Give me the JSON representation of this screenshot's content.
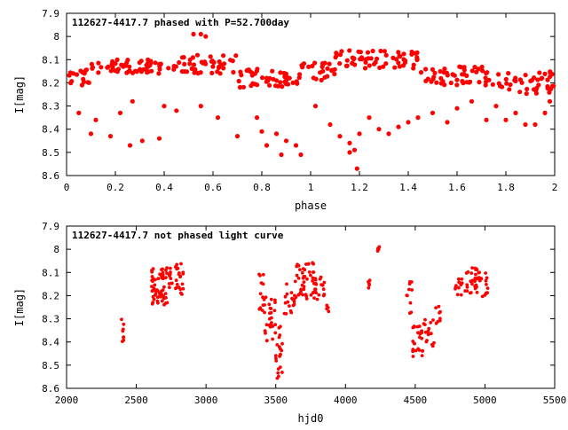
{
  "chart_data": [
    {
      "type": "scatter",
      "title": "112627-4417.7 phased with P=52.700day",
      "xlabel": "phase",
      "ylabel": "I[mag]",
      "xlim": [
        0,
        2
      ],
      "ylim": [
        8.6,
        7.9
      ],
      "y_inverted": true,
      "grid": false,
      "marker_color": "#ff0000",
      "x_ticks": [
        "0",
        "0.2",
        "0.4",
        "0.6",
        "0.8",
        "1",
        "1.2",
        "1.4",
        "1.6",
        "1.8",
        "2"
      ],
      "y_ticks": [
        "7.9",
        "8",
        "8.1",
        "8.2",
        "8.3",
        "8.4",
        "8.5",
        "8.6"
      ],
      "segments": [
        {
          "x0": 0.0,
          "x1": 0.1,
          "y": 8.17,
          "spread": 0.04
        },
        {
          "x0": 0.1,
          "x1": 0.45,
          "y": 8.13,
          "spread": 0.03
        },
        {
          "x0": 0.45,
          "x1": 0.7,
          "y": 8.12,
          "spread": 0.04
        },
        {
          "x0": 0.7,
          "x1": 0.95,
          "y": 8.18,
          "spread": 0.04
        },
        {
          "x0": 0.95,
          "x1": 1.1,
          "y": 8.15,
          "spread": 0.04
        },
        {
          "x0": 1.1,
          "x1": 1.45,
          "y": 8.1,
          "spread": 0.04
        },
        {
          "x0": 1.45,
          "x1": 1.75,
          "y": 8.17,
          "spread": 0.04
        },
        {
          "x0": 1.75,
          "x1": 2.0,
          "y": 8.2,
          "spread": 0.05
        }
      ],
      "faint_branch": [
        {
          "x": 0.05,
          "y": 8.33
        },
        {
          "x": 0.1,
          "y": 8.42
        },
        {
          "x": 0.18,
          "y": 8.43
        },
        {
          "x": 0.26,
          "y": 8.47
        },
        {
          "x": 0.31,
          "y": 8.45
        },
        {
          "x": 0.38,
          "y": 8.44
        },
        {
          "x": 0.12,
          "y": 8.36
        },
        {
          "x": 0.22,
          "y": 8.33
        },
        {
          "x": 0.27,
          "y": 8.28
        },
        {
          "x": 0.4,
          "y": 8.3
        },
        {
          "x": 0.45,
          "y": 8.32
        },
        {
          "x": 0.55,
          "y": 8.3
        },
        {
          "x": 0.62,
          "y": 8.35
        },
        {
          "x": 0.7,
          "y": 8.43
        },
        {
          "x": 0.8,
          "y": 8.41
        },
        {
          "x": 0.82,
          "y": 8.47
        },
        {
          "x": 0.86,
          "y": 8.42
        },
        {
          "x": 0.88,
          "y": 8.51
        },
        {
          "x": 0.9,
          "y": 8.45
        },
        {
          "x": 0.94,
          "y": 8.47
        },
        {
          "x": 0.96,
          "y": 8.51
        },
        {
          "x": 0.78,
          "y": 8.35
        },
        {
          "x": 1.02,
          "y": 8.3
        },
        {
          "x": 1.08,
          "y": 8.38
        },
        {
          "x": 1.12,
          "y": 8.43
        },
        {
          "x": 1.16,
          "y": 8.46
        },
        {
          "x": 1.18,
          "y": 8.49
        },
        {
          "x": 1.2,
          "y": 8.42
        },
        {
          "x": 1.24,
          "y": 8.35
        },
        {
          "x": 1.28,
          "y": 8.4
        },
        {
          "x": 1.32,
          "y": 8.42
        },
        {
          "x": 1.36,
          "y": 8.39
        },
        {
          "x": 1.4,
          "y": 8.37
        },
        {
          "x": 1.44,
          "y": 8.35
        },
        {
          "x": 1.5,
          "y": 8.33
        },
        {
          "x": 1.56,
          "y": 8.37
        },
        {
          "x": 1.6,
          "y": 8.31
        },
        {
          "x": 1.66,
          "y": 8.28
        },
        {
          "x": 1.72,
          "y": 8.36
        },
        {
          "x": 1.76,
          "y": 8.3
        },
        {
          "x": 1.8,
          "y": 8.36
        },
        {
          "x": 1.84,
          "y": 8.33
        },
        {
          "x": 1.88,
          "y": 8.38
        },
        {
          "x": 1.92,
          "y": 8.38
        },
        {
          "x": 1.96,
          "y": 8.33
        },
        {
          "x": 1.98,
          "y": 8.28
        }
      ],
      "outliers": [
        {
          "x": 0.52,
          "y": 7.99
        },
        {
          "x": 0.55,
          "y": 7.99
        },
        {
          "x": 0.57,
          "y": 8.0
        },
        {
          "x": 1.19,
          "y": 8.57
        },
        {
          "x": 1.16,
          "y": 8.5
        }
      ]
    },
    {
      "type": "scatter",
      "title": "112627-4417.7 not phased light curve",
      "xlabel": "hjd0",
      "ylabel": "I[mag]",
      "xlim": [
        2000,
        5500
      ],
      "ylim": [
        8.6,
        7.9
      ],
      "y_inverted": true,
      "grid": false,
      "marker_color": "#ff0000",
      "x_ticks": [
        "2000",
        "2500",
        "3000",
        "3500",
        "4000",
        "4500",
        "5000",
        "5500"
      ],
      "y_ticks": [
        "7.9",
        "8",
        "8.1",
        "8.2",
        "8.3",
        "8.4",
        "8.5",
        "8.6"
      ],
      "clusters": [
        {
          "x0": 2390,
          "x1": 2410,
          "y0": 8.3,
          "y1": 8.41,
          "n": 8
        },
        {
          "x0": 2610,
          "x1": 2760,
          "y0": 8.08,
          "y1": 8.25,
          "n": 70
        },
        {
          "x0": 2780,
          "x1": 2840,
          "y0": 8.06,
          "y1": 8.2,
          "n": 22
        },
        {
          "x0": 3380,
          "x1": 3420,
          "y0": 8.1,
          "y1": 8.28,
          "n": 14
        },
        {
          "x0": 3420,
          "x1": 3500,
          "y0": 8.2,
          "y1": 8.4,
          "n": 26
        },
        {
          "x0": 3500,
          "x1": 3550,
          "y0": 8.32,
          "y1": 8.57,
          "n": 22
        },
        {
          "x0": 3560,
          "x1": 3640,
          "y0": 8.15,
          "y1": 8.3,
          "n": 18
        },
        {
          "x0": 3640,
          "x1": 3780,
          "y0": 8.05,
          "y1": 8.22,
          "n": 44
        },
        {
          "x0": 3780,
          "x1": 3850,
          "y0": 8.12,
          "y1": 8.22,
          "n": 18
        },
        {
          "x0": 3860,
          "x1": 3880,
          "y0": 8.24,
          "y1": 8.28,
          "n": 4
        },
        {
          "x0": 4160,
          "x1": 4180,
          "y0": 8.13,
          "y1": 8.17,
          "n": 5
        },
        {
          "x0": 4230,
          "x1": 4245,
          "y0": 7.98,
          "y1": 8.01,
          "n": 4
        },
        {
          "x0": 4430,
          "x1": 4480,
          "y0": 8.14,
          "y1": 8.28,
          "n": 10
        },
        {
          "x0": 4480,
          "x1": 4560,
          "y0": 8.33,
          "y1": 8.47,
          "n": 26
        },
        {
          "x0": 4560,
          "x1": 4640,
          "y0": 8.3,
          "y1": 8.42,
          "n": 16
        },
        {
          "x0": 4640,
          "x1": 4680,
          "y0": 8.24,
          "y1": 8.32,
          "n": 8
        },
        {
          "x0": 4780,
          "x1": 4860,
          "y0": 8.12,
          "y1": 8.2,
          "n": 14
        },
        {
          "x0": 4860,
          "x1": 4960,
          "y0": 8.08,
          "y1": 8.2,
          "n": 30
        },
        {
          "x0": 4960,
          "x1": 5020,
          "y0": 8.1,
          "y1": 8.22,
          "n": 12
        }
      ]
    }
  ]
}
